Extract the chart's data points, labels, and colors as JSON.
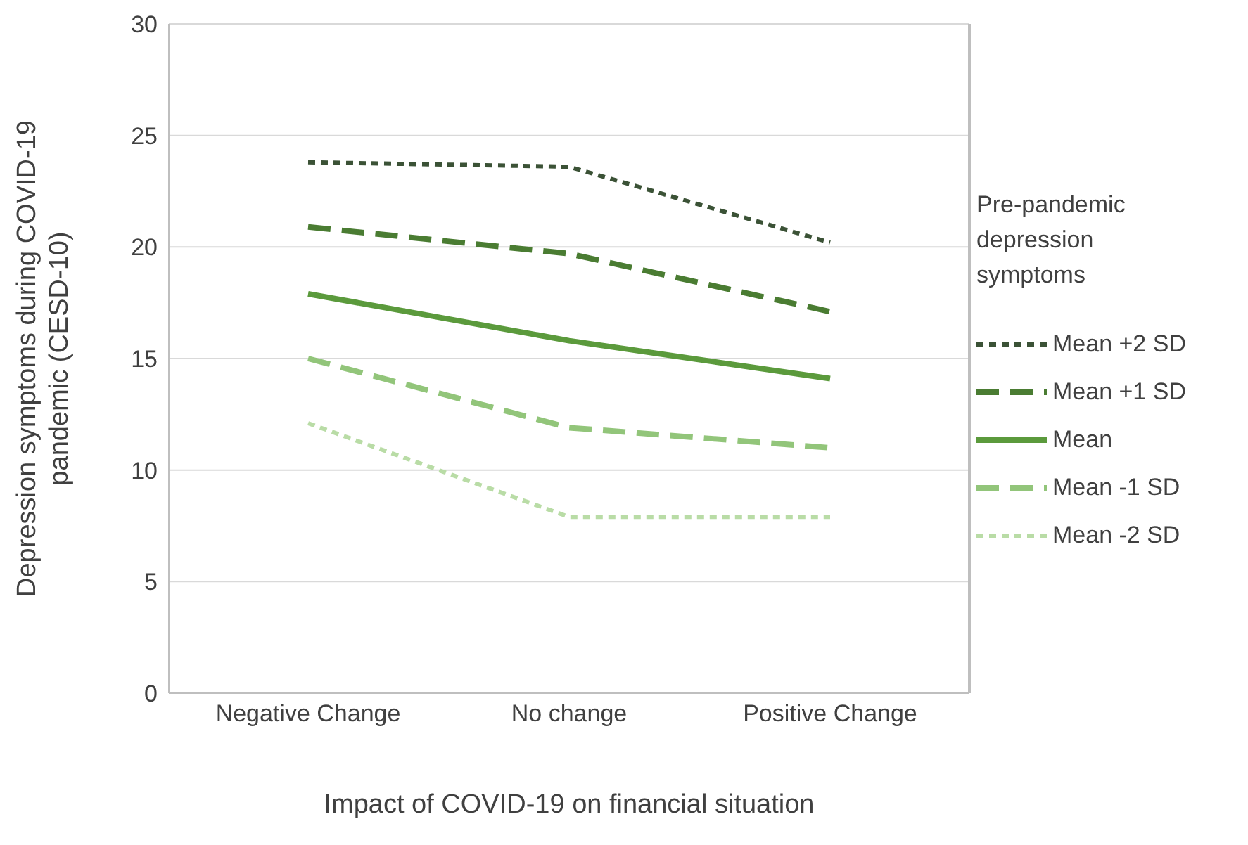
{
  "chart_data": {
    "type": "line",
    "xlabel": "Impact of COVID-19 on financial situation",
    "ylabel": "Depression symptoms during COVID-19 pandemic (CESD-10)",
    "legend_title": "Pre-pandemic depression symptoms",
    "categories": [
      "Negative Change",
      "No change",
      "Positive Change"
    ],
    "series": [
      {
        "name": "Mean +2 SD",
        "color": "#3b5236",
        "values": [
          23.8,
          23.6,
          20.2
        ],
        "line_style": "dotted"
      },
      {
        "name": "Mean +1 SD",
        "color": "#4a7c32",
        "values": [
          20.9,
          19.7,
          17.1
        ],
        "line_style": "dashed"
      },
      {
        "name": "Mean",
        "color": "#5b9a3c",
        "values": [
          17.9,
          15.8,
          14.1
        ],
        "line_style": "solid"
      },
      {
        "name": "Mean -1 SD",
        "color": "#92c57a",
        "values": [
          15.0,
          11.9,
          11.0
        ],
        "line_style": "dashed"
      },
      {
        "name": "Mean -2 SD",
        "color": "#b9dca6",
        "values": [
          12.1,
          7.9,
          7.9
        ],
        "line_style": "dotted"
      }
    ],
    "ylim": [
      0,
      30
    ],
    "yticks": [
      0,
      5,
      10,
      15,
      20,
      25,
      30
    ],
    "grid": "y",
    "legend": "right",
    "marker": "none"
  }
}
